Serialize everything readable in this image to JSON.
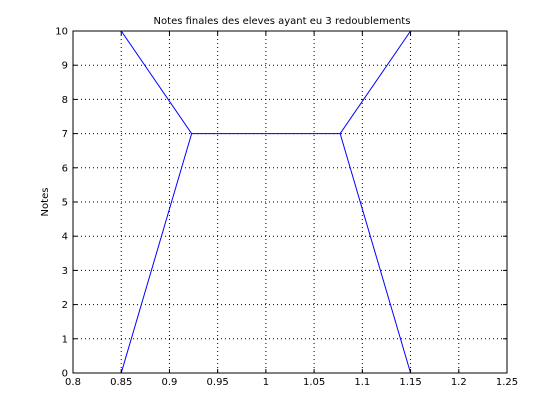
{
  "chart_data": {
    "type": "line",
    "title": "Notes finales des eleves ayant eu 3 redoublements",
    "xlabel": "",
    "ylabel": "Notes",
    "xlim": [
      0.8,
      1.25
    ],
    "ylim": [
      0,
      10
    ],
    "xticks": [
      0.8,
      0.85,
      0.9,
      0.95,
      1,
      1.05,
      1.1,
      1.15,
      1.2,
      1.25
    ],
    "xtick_labels": [
      "0.8",
      "0.85",
      "0.9",
      "0.95",
      "1",
      "1.05",
      "1.1",
      "1.15",
      "1.2",
      "1.25"
    ],
    "yticks": [
      0,
      1,
      2,
      3,
      4,
      5,
      6,
      7,
      8,
      9,
      10
    ],
    "ytick_labels": [
      "0",
      "1",
      "2",
      "3",
      "4",
      "5",
      "6",
      "7",
      "8",
      "9",
      "10"
    ],
    "grid": true,
    "grid_style": "dotted",
    "series": [
      {
        "color": "#0000ff",
        "points": [
          [
            0.85,
            0
          ],
          [
            0.923,
            7
          ],
          [
            0.85,
            10
          ]
        ]
      },
      {
        "color": "#0000ff",
        "points": [
          [
            0.923,
            7
          ],
          [
            1.077,
            7
          ]
        ]
      },
      {
        "color": "#0000ff",
        "points": [
          [
            1.15,
            0
          ],
          [
            1.077,
            7
          ],
          [
            1.15,
            10
          ]
        ]
      }
    ]
  }
}
